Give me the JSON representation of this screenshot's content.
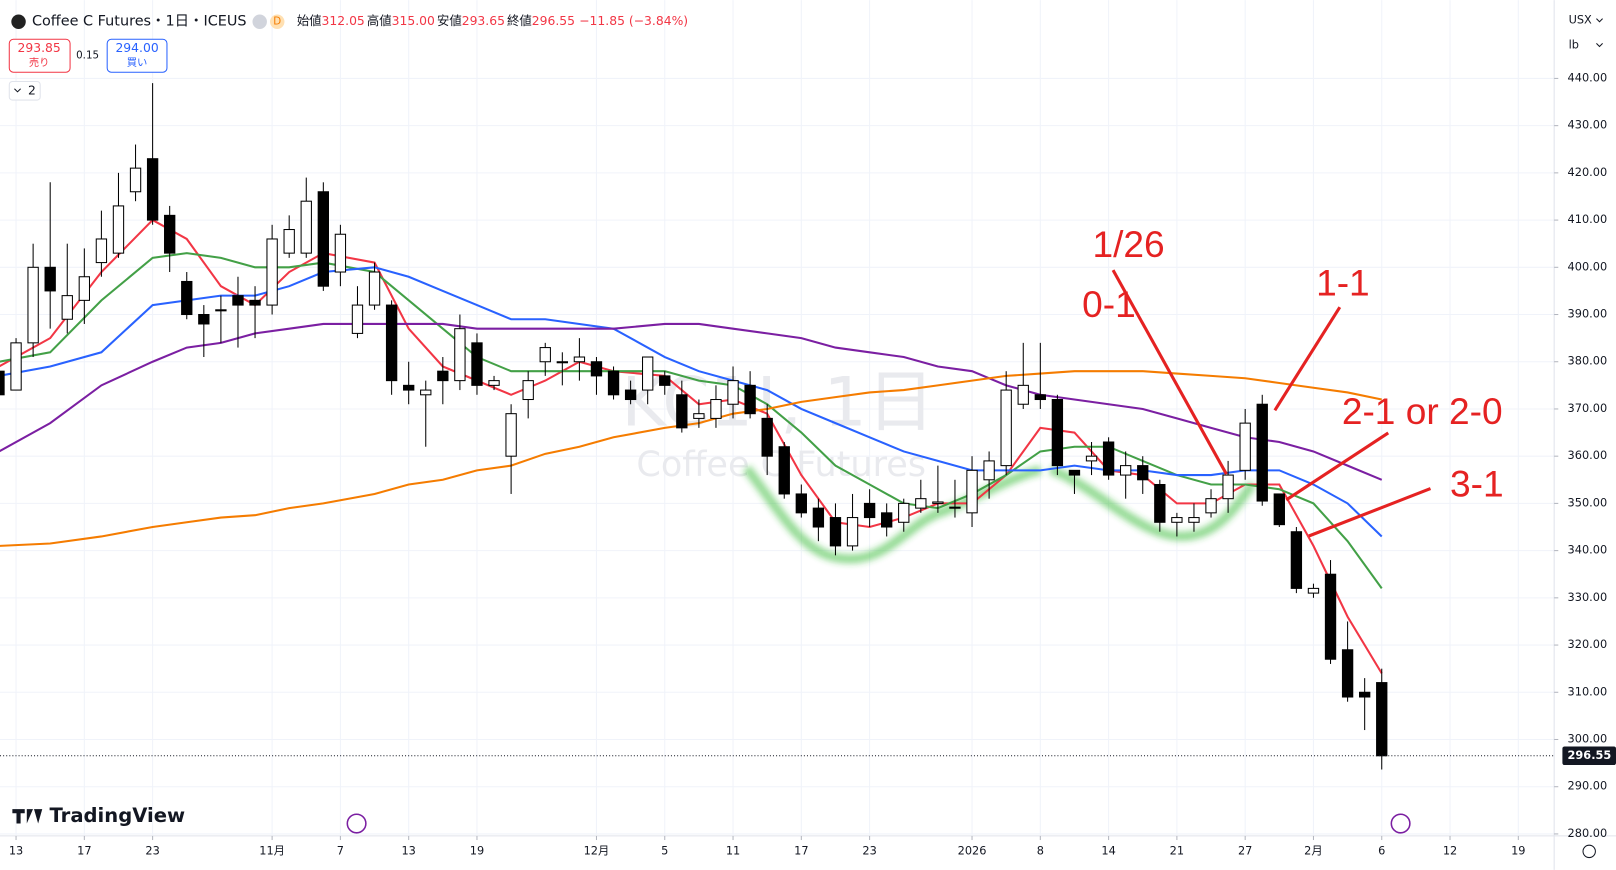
{
  "header": {
    "symbol": "Coffee C Futures・1日・ICEUS",
    "badge": "D",
    "ohlc": [
      {
        "label": "始値",
        "value": "312.05"
      },
      {
        "label": "高値",
        "value": "315.00"
      },
      {
        "label": "安値",
        "value": "293.65"
      },
      {
        "label": "終値",
        "value": "296.55"
      }
    ],
    "change": "−11.85 (−3.84%)",
    "sell": {
      "price": "293.85",
      "label": "売り"
    },
    "spread": "0.15",
    "buy": {
      "price": "294.00",
      "label": "買い"
    },
    "indicators": "2",
    "currency": "USX",
    "unit": "lb",
    "brand": "TradingView"
  },
  "chart_data": {
    "type": "candlestick",
    "watermark": {
      "symbol": "KC1!, 1日",
      "name": "Coffee C Futures"
    },
    "x": [
      0,
      1,
      2,
      3,
      4,
      5,
      6,
      7,
      8,
      9,
      10,
      11,
      12,
      13,
      14,
      15,
      16,
      17,
      18,
      19,
      20,
      21,
      22,
      23,
      24,
      25,
      26,
      27,
      28,
      29,
      30,
      31,
      32,
      33,
      34,
      35,
      36,
      37,
      38,
      39,
      40,
      41,
      42,
      43,
      44,
      45,
      46,
      47,
      48,
      49,
      50,
      51,
      52,
      53,
      54,
      55,
      56,
      57,
      58,
      59,
      60,
      61,
      62,
      63,
      64,
      65,
      66,
      67,
      68,
      69,
      70,
      71,
      72,
      73,
      74,
      75,
      76,
      77,
      78,
      79,
      80,
      81
    ],
    "open": [
      378,
      374,
      384,
      400,
      389,
      393,
      401,
      403,
      416,
      423,
      411,
      397,
      390,
      391,
      394,
      393,
      392,
      403,
      403,
      416,
      399,
      386,
      392,
      392,
      375,
      373,
      378,
      376,
      384,
      375,
      360,
      372,
      380,
      380,
      380,
      380,
      378,
      374,
      374,
      377,
      373,
      368,
      368,
      371,
      375,
      368,
      362,
      352,
      349,
      347,
      341,
      350,
      348,
      346,
      349,
      350,
      349,
      348,
      355,
      358,
      371,
      373,
      372,
      357,
      359,
      363,
      356,
      358,
      354,
      346,
      346,
      348,
      351,
      357,
      371,
      352,
      344,
      331,
      335,
      319,
      310,
      312.05
    ],
    "high": [
      380,
      385,
      405,
      418,
      405,
      404,
      412,
      420,
      426,
      439,
      413,
      399,
      392,
      394,
      398,
      396,
      409,
      411,
      419,
      418,
      409,
      396,
      401,
      393,
      380,
      376,
      381,
      390,
      386,
      377,
      371,
      378,
      384,
      382,
      385,
      381,
      379,
      376,
      381,
      378,
      376,
      372,
      375,
      379,
      378,
      371,
      363,
      354,
      351,
      350,
      352,
      353,
      350,
      351,
      355,
      358,
      355,
      360,
      361,
      378,
      384,
      384,
      373,
      357,
      363,
      364,
      361,
      360,
      355,
      348,
      350,
      353,
      359,
      370,
      373,
      352,
      345,
      333,
      338,
      325,
      313,
      315
    ],
    "low": [
      373,
      374,
      381,
      387,
      386,
      388,
      398,
      402,
      414,
      409,
      399,
      389,
      381,
      384,
      383,
      385,
      390,
      402,
      402,
      395,
      396,
      385,
      391,
      373,
      371,
      362,
      371,
      374,
      373,
      374,
      352,
      368,
      377,
      375,
      376,
      373,
      372,
      371,
      371,
      373,
      365,
      366,
      366,
      368,
      368,
      356,
      351,
      347,
      342,
      339,
      340,
      345,
      343,
      344,
      348,
      348,
      347,
      345,
      351,
      356,
      370,
      370,
      356,
      352,
      356,
      355,
      351,
      352,
      344,
      343,
      344,
      347,
      348,
      355,
      349.5,
      345,
      331,
      330,
      316,
      308,
      302,
      293.65
    ],
    "close": [
      373,
      384,
      400,
      395,
      394,
      398,
      406,
      413,
      421,
      410,
      403,
      390,
      388,
      391,
      392,
      392,
      406,
      408,
      414,
      396,
      407,
      392,
      399,
      376,
      374,
      374,
      376,
      387,
      375,
      376,
      369,
      376,
      383,
      380,
      381,
      377,
      373,
      372,
      381,
      375,
      366,
      369,
      372,
      376,
      369,
      360,
      352,
      348,
      345,
      341,
      347,
      347,
      345,
      350,
      351,
      350.3,
      349.2,
      357,
      359,
      374,
      375,
      372,
      358,
      356,
      360,
      356,
      358,
      355,
      346,
      347,
      347,
      351,
      356,
      367,
      350.5,
      345.5,
      332,
      332,
      317,
      309,
      309,
      296.55
    ],
    "ma_x": [
      0,
      3,
      6,
      9,
      11,
      13,
      15,
      17,
      19,
      22,
      24,
      26,
      28,
      30,
      32,
      34,
      36,
      39,
      41,
      43,
      45,
      47,
      49,
      51,
      53,
      55,
      57,
      59,
      61,
      63,
      65,
      67,
      69,
      71,
      73,
      75,
      77,
      79,
      81
    ],
    "moving_averages": [
      {
        "color": "#f23645",
        "values": [
          379,
          385,
          399,
          410,
          406,
          396,
          392,
          399,
          403,
          401,
          387,
          379,
          376,
          373,
          376,
          380,
          378,
          377,
          371,
          372,
          369,
          356,
          346,
          345,
          347,
          350,
          350,
          356,
          366,
          365,
          357,
          356,
          350,
          350,
          354,
          354,
          341,
          326,
          314
        ]
      },
      {
        "color": "#43a047",
        "values": [
          380,
          382,
          393,
          402,
          403,
          402,
          400,
          400,
          401,
          399,
          393,
          387,
          381,
          378,
          378,
          378,
          378,
          378,
          376,
          375,
          371,
          365,
          358,
          354,
          350,
          349,
          352,
          356,
          361,
          362,
          362,
          359,
          356,
          354,
          354,
          353,
          350,
          342,
          332
        ]
      },
      {
        "color": "#2962ff",
        "values": [
          377,
          379,
          382,
          392,
          393,
          394,
          394,
          396,
          399,
          400,
          398,
          395,
          392,
          389,
          389,
          388,
          387,
          381,
          378,
          376,
          374,
          370,
          367,
          364,
          361,
          359,
          357,
          357,
          357,
          358,
          357,
          357,
          356,
          356,
          357,
          357,
          354,
          350,
          343
        ]
      },
      {
        "color": "#7b1fa2",
        "values": [
          361,
          367,
          375,
          380,
          383,
          384,
          386,
          387,
          388,
          388,
          388,
          388,
          387,
          387,
          387,
          387,
          387,
          388,
          388,
          387,
          386,
          385,
          383,
          382,
          381,
          379,
          378,
          375,
          373,
          372,
          371,
          370,
          368,
          366,
          364,
          363,
          361,
          358,
          355
        ]
      },
      {
        "color": "#f57c00",
        "values": [
          341,
          341.5,
          343,
          345,
          346,
          347,
          347.5,
          349,
          350,
          352,
          354,
          355,
          357,
          358,
          360.5,
          362,
          364,
          366,
          367,
          369,
          370,
          371.5,
          372.5,
          373.5,
          374,
          375,
          376,
          377,
          377.5,
          378,
          378,
          378,
          377.5,
          377,
          376.5,
          375.5,
          374.5,
          373.5,
          372
        ]
      }
    ],
    "last_price": {
      "value": 296.55,
      "label": "296.55"
    },
    "xlim": [
      0.06,
      91.1
    ],
    "ylim": [
      279.8,
      455.5
    ],
    "xticks": [
      {
        "value": 1,
        "label": "13"
      },
      {
        "value": 5,
        "label": "17"
      },
      {
        "value": 9,
        "label": "23"
      },
      {
        "value": 16,
        "label": "11月"
      },
      {
        "value": 20,
        "label": "7"
      },
      {
        "value": 24,
        "label": "13"
      },
      {
        "value": 28,
        "label": "19"
      },
      {
        "value": 35,
        "label": "12月"
      },
      {
        "value": 39,
        "label": "5"
      },
      {
        "value": 43,
        "label": "11"
      },
      {
        "value": 47,
        "label": "17"
      },
      {
        "value": 51,
        "label": "23"
      },
      {
        "value": 57,
        "label": "2026"
      },
      {
        "value": 61,
        "label": "8"
      },
      {
        "value": 65,
        "label": "14"
      },
      {
        "value": 69,
        "label": "21"
      },
      {
        "value": 73,
        "label": "27"
      },
      {
        "value": 77,
        "label": "2月"
      },
      {
        "value": 81,
        "label": "6"
      },
      {
        "value": 85,
        "label": "12"
      },
      {
        "value": 89,
        "label": "19"
      }
    ],
    "yticks": [
      {
        "value": 280,
        "label": "280.00"
      },
      {
        "value": 290,
        "label": "290.00"
      },
      {
        "value": 300,
        "label": "300.00"
      },
      {
        "value": 310,
        "label": "310.00"
      },
      {
        "value": 320,
        "label": "320.00"
      },
      {
        "value": 330,
        "label": "330.00"
      },
      {
        "value": 340,
        "label": "340.00"
      },
      {
        "value": 350,
        "label": "350.00"
      },
      {
        "value": 360,
        "label": "360.00"
      },
      {
        "value": 370,
        "label": "370.00"
      },
      {
        "value": 380,
        "label": "380.00"
      },
      {
        "value": 390,
        "label": "390.00"
      },
      {
        "value": 400,
        "label": "400.00"
      },
      {
        "value": 410,
        "label": "410.00"
      },
      {
        "value": 420,
        "label": "420.00"
      },
      {
        "value": 430,
        "label": "430.00"
      },
      {
        "value": 440,
        "label": "440.00"
      }
    ],
    "grid": true,
    "up_color": "#ffffff",
    "down_color": "#000000",
    "annotations": [
      {
        "text": "1/26"
      },
      {
        "text": "0-1"
      },
      {
        "text": "1-1"
      },
      {
        "text": "2-1 or 2-0"
      },
      {
        "text": "3-1"
      }
    ]
  }
}
